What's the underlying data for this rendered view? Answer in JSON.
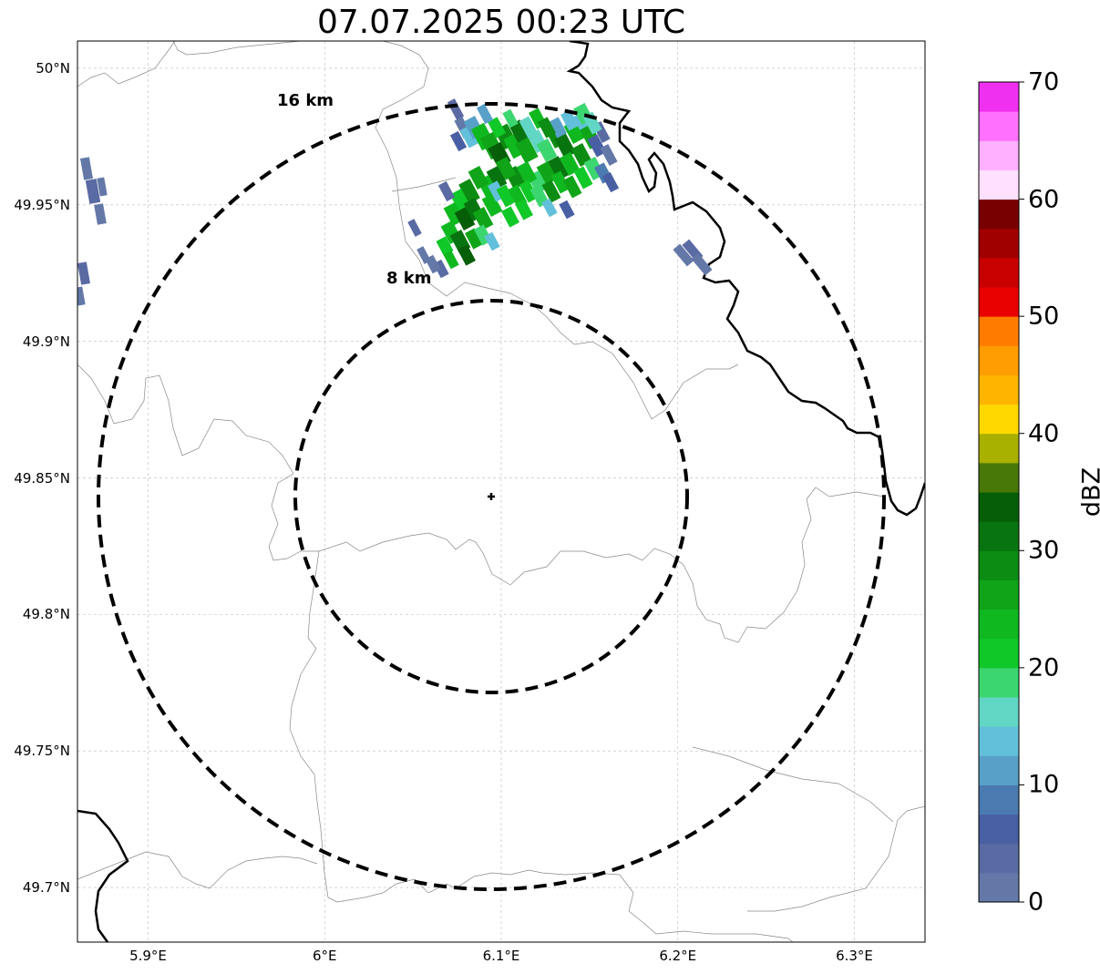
{
  "title": "07.07.2025 00:23 UTC",
  "map": {
    "lat_ticks": [
      "50°N",
      "49.95°N",
      "49.9°N",
      "49.85°N",
      "49.8°N",
      "49.75°N",
      "49.7°N"
    ],
    "lon_ticks": [
      "5.9°E",
      "6°E",
      "6.1°E",
      "6.2°E",
      "6.3°E"
    ],
    "extent": {
      "lon_min": 5.86,
      "lon_max": 6.34,
      "lat_min": 49.68,
      "lat_max": 50.01
    },
    "radar_site": {
      "lon": 6.095,
      "lat": 49.843
    },
    "range_rings": [
      {
        "label": "8 km",
        "radius_km": 8
      },
      {
        "label": "16 km",
        "radius_km": 16
      }
    ],
    "gridlines": true
  },
  "colorbar": {
    "label": "dBZ",
    "ticks": [
      "0",
      "10",
      "20",
      "30",
      "40",
      "50",
      "60",
      "70"
    ],
    "min": 0,
    "max": 70,
    "step": 2.5,
    "colors": [
      "#6478a8",
      "#5a6aa3",
      "#4860a3",
      "#4a7ab0",
      "#58a0c8",
      "#62c0da",
      "#62d6c4",
      "#3cd670",
      "#10c828",
      "#10b820",
      "#10a418",
      "#0c8c12",
      "#087410",
      "#065e08",
      "#487808",
      "#a8b000",
      "#ffd800",
      "#ffb400",
      "#ff9c00",
      "#ff7c00",
      "#e80000",
      "#c80000",
      "#a00000",
      "#780000",
      "#ffe0ff",
      "#ffb0ff",
      "#ff70ff",
      "#f030f0"
    ]
  }
}
